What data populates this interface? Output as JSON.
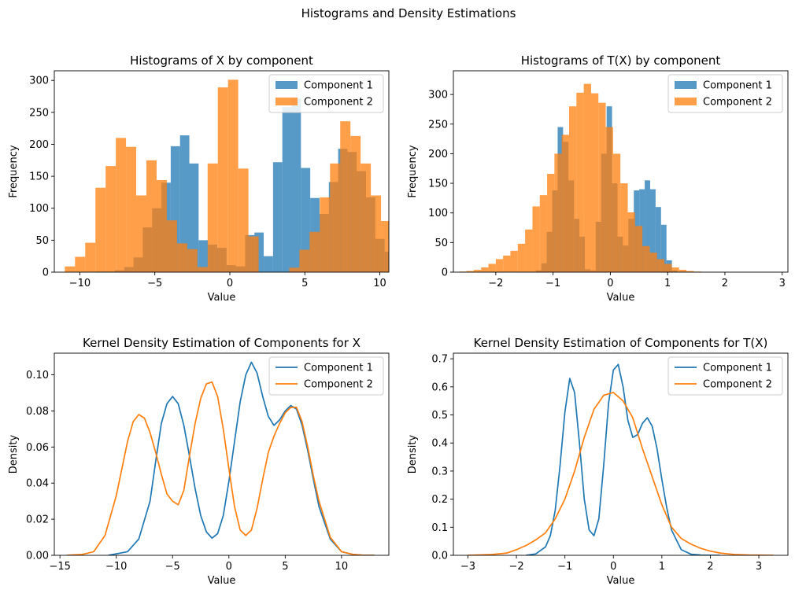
{
  "figure": {
    "suptitle": "Histograms and Density Estimations"
  },
  "colors": {
    "component1": "#1f77b4",
    "component2": "#ff7f0e",
    "overlap": "#c17a3a"
  },
  "chart_data": [
    {
      "type": "histogram",
      "title": "Histograms of X by component",
      "xlabel": "Value",
      "ylabel": "Frequency",
      "xlim": [
        -11.7,
        10.6
      ],
      "ylim": [
        0,
        315
      ],
      "xticks": [
        -10,
        -5,
        0,
        5,
        10
      ],
      "yticks": [
        0,
        50,
        100,
        150,
        200,
        250,
        300
      ],
      "legend": "top-right",
      "grid": false,
      "series": [
        {
          "name": "Component 1",
          "bin_start": -8.9,
          "bin_width": 0.62,
          "counts": [
            1,
            1,
            3,
            8,
            23,
            70,
            100,
            140,
            197,
            214,
            170,
            50,
            43,
            38,
            11,
            9,
            58,
            62,
            25,
            172,
            258,
            272,
            163,
            116,
            91,
            141,
            193,
            188,
            158,
            117,
            52,
            32,
            5,
            3
          ]
        },
        {
          "name": "Component 2",
          "bin_start": -11.0,
          "bin_width": 0.68,
          "counts": [
            9,
            24,
            46,
            132,
            166,
            210,
            196,
            120,
            175,
            144,
            81,
            45,
            36,
            8,
            170,
            289,
            301,
            162,
            56,
            0,
            0,
            0,
            7,
            35,
            63,
            117,
            170,
            236,
            213,
            170,
            120,
            80,
            40,
            13,
            5,
            1
          ]
        }
      ]
    },
    {
      "type": "histogram",
      "title": "Histograms of T(X) by component",
      "xlabel": "Value",
      "ylabel": "Frequency",
      "xlim": [
        -2.74,
        3.1
      ],
      "ylim": [
        0,
        340
      ],
      "xticks": [
        -2,
        -1,
        0,
        1,
        2,
        3
      ],
      "yticks": [
        0,
        50,
        100,
        150,
        200,
        250,
        300
      ],
      "legend": "top-right",
      "grid": false,
      "series": [
        {
          "name": "Component 1",
          "bin_start": -1.3,
          "bin_width": 0.095,
          "counts": [
            3,
            15,
            68,
            138,
            245,
            220,
            155,
            90,
            60,
            5,
            3,
            85,
            200,
            280,
            150,
            60,
            45,
            90,
            138,
            140,
            155,
            140,
            110,
            80,
            20,
            3
          ]
        },
        {
          "name": "Component 2",
          "bin_start": -2.64,
          "bin_width": 0.128,
          "counts": [
            1,
            2,
            4,
            8,
            14,
            22,
            28,
            36,
            48,
            72,
            111,
            130,
            166,
            200,
            232,
            280,
            303,
            318,
            302,
            286,
            245,
            200,
            150,
            101,
            78,
            44,
            33,
            22,
            14,
            8,
            4,
            2,
            1
          ]
        }
      ]
    },
    {
      "type": "line",
      "title": "Kernel Density Estimation of Components for X",
      "xlabel": "Value",
      "ylabel": "Density",
      "xlim": [
        -15.5,
        14.2
      ],
      "ylim": [
        0,
        0.112
      ],
      "xticks": [
        -15,
        -10,
        -5,
        0,
        5,
        10
      ],
      "yticks": [
        0,
        0.02,
        0.04,
        0.06,
        0.08,
        0.1
      ],
      "legend": "top-right",
      "grid": false,
      "series": [
        {
          "name": "Component 1",
          "x": [
            -10.7,
            -9,
            -8,
            -7,
            -6.5,
            -6,
            -5.5,
            -5,
            -4.5,
            -4,
            -3.5,
            -3,
            -2.5,
            -2,
            -1.5,
            -1,
            -0.5,
            0,
            0.5,
            1,
            1.5,
            2,
            2.5,
            3,
            3.5,
            4,
            4.5,
            5,
            5.5,
            6,
            6.5,
            7,
            7.5,
            8,
            9,
            10,
            11,
            12,
            12.9
          ],
          "y": [
            0,
            0.002,
            0.009,
            0.03,
            0.052,
            0.073,
            0.084,
            0.088,
            0.084,
            0.072,
            0.055,
            0.037,
            0.022,
            0.013,
            0.0095,
            0.012,
            0.022,
            0.041,
            0.063,
            0.085,
            0.1,
            0.107,
            0.101,
            0.088,
            0.077,
            0.072,
            0.075,
            0.08,
            0.083,
            0.081,
            0.072,
            0.058,
            0.042,
            0.027,
            0.009,
            0.002,
            0.0005,
            0,
            0
          ]
        },
        {
          "name": "Component 2",
          "x": [
            -14.4,
            -13,
            -12,
            -11,
            -10,
            -9.5,
            -9,
            -8.5,
            -8,
            -7.5,
            -7,
            -6.5,
            -6,
            -5.5,
            -5,
            -4.5,
            -4,
            -3.5,
            -3,
            -2.5,
            -2,
            -1.5,
            -1,
            -0.5,
            0,
            0.5,
            1,
            1.5,
            2,
            2.5,
            3,
            3.5,
            4,
            4.5,
            5,
            5.5,
            6,
            6.5,
            7,
            7.5,
            8,
            9,
            10,
            11,
            12,
            12.9
          ],
          "y": [
            0,
            0.0005,
            0.002,
            0.011,
            0.033,
            0.048,
            0.063,
            0.074,
            0.078,
            0.076,
            0.068,
            0.057,
            0.045,
            0.034,
            0.03,
            0.028,
            0.036,
            0.055,
            0.073,
            0.087,
            0.095,
            0.096,
            0.088,
            0.07,
            0.048,
            0.027,
            0.014,
            0.011,
            0.014,
            0.026,
            0.042,
            0.057,
            0.066,
            0.073,
            0.079,
            0.082,
            0.082,
            0.074,
            0.06,
            0.044,
            0.03,
            0.01,
            0.002,
            0.0005,
            0,
            0
          ]
        }
      ]
    },
    {
      "type": "line",
      "title": "Kernel Density Estimation of Components for T(X)",
      "xlabel": "Value",
      "ylabel": "Density",
      "xlim": [
        -3.3,
        3.6
      ],
      "ylim": [
        0,
        0.72
      ],
      "xticks": [
        -3,
        -2,
        -1,
        0,
        1,
        2,
        3
      ],
      "yticks": [
        0,
        0.1,
        0.2,
        0.3,
        0.4,
        0.5,
        0.6,
        0.7
      ],
      "legend": "top-right",
      "grid": false,
      "series": [
        {
          "name": "Component 1",
          "x": [
            -1.8,
            -1.6,
            -1.4,
            -1.3,
            -1.2,
            -1.1,
            -1,
            -0.9,
            -0.8,
            -0.7,
            -0.6,
            -0.5,
            -0.4,
            -0.3,
            -0.2,
            -0.1,
            0,
            0.1,
            0.2,
            0.3,
            0.4,
            0.5,
            0.6,
            0.7,
            0.8,
            0.9,
            1,
            1.1,
            1.2,
            1.4,
            1.6,
            1.8,
            2,
            2.2
          ],
          "y": [
            0,
            0.005,
            0.03,
            0.07,
            0.16,
            0.32,
            0.51,
            0.63,
            0.58,
            0.4,
            0.2,
            0.09,
            0.07,
            0.13,
            0.32,
            0.54,
            0.66,
            0.68,
            0.6,
            0.48,
            0.42,
            0.43,
            0.47,
            0.49,
            0.46,
            0.38,
            0.27,
            0.17,
            0.09,
            0.02,
            0.004,
            0.001,
            0,
            0
          ]
        },
        {
          "name": "Component 2",
          "x": [
            -3,
            -2.5,
            -2.2,
            -2,
            -1.8,
            -1.6,
            -1.4,
            -1.2,
            -1,
            -0.8,
            -0.6,
            -0.4,
            -0.2,
            0,
            0.2,
            0.4,
            0.6,
            0.8,
            1,
            1.2,
            1.4,
            1.6,
            1.8,
            2,
            2.2,
            2.5,
            2.8,
            3.3
          ],
          "y": [
            0,
            0.003,
            0.008,
            0.02,
            0.035,
            0.055,
            0.08,
            0.13,
            0.2,
            0.3,
            0.42,
            0.52,
            0.57,
            0.58,
            0.55,
            0.49,
            0.38,
            0.28,
            0.18,
            0.1,
            0.06,
            0.04,
            0.025,
            0.015,
            0.008,
            0.003,
            0.001,
            0
          ]
        }
      ]
    }
  ]
}
